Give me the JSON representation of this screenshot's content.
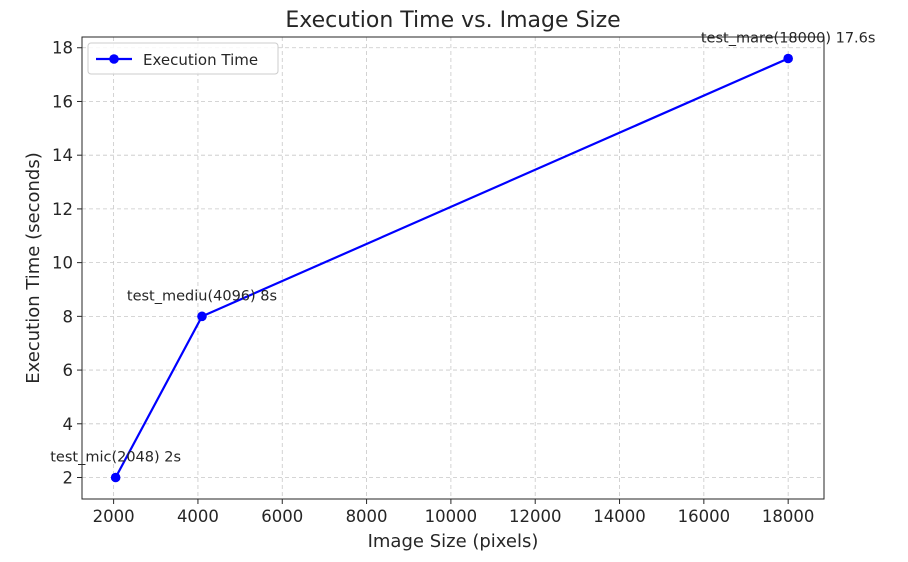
{
  "chart_data": {
    "type": "line",
    "title": "Execution Time vs. Image Size",
    "xlabel": "Image Size (pixels)",
    "ylabel": "Execution Time (seconds)",
    "xlim": [
      1250,
      18850
    ],
    "ylim": [
      1.2,
      18.4
    ],
    "x_ticks": [
      2000,
      4000,
      6000,
      8000,
      10000,
      12000,
      14000,
      16000,
      18000
    ],
    "y_ticks": [
      2,
      4,
      6,
      8,
      10,
      12,
      14,
      16,
      18
    ],
    "grid": true,
    "legend_position": "top-left",
    "series": [
      {
        "name": "Execution Time",
        "color": "#0000ff",
        "marker": "circle",
        "x": [
          2048,
          4096,
          18000
        ],
        "y": [
          2,
          8,
          17.6
        ]
      }
    ],
    "annotations": [
      {
        "text": "test_mic(2048) 2s",
        "x": 2048,
        "y": 2
      },
      {
        "text": "test_mediu(4096) 8s",
        "x": 4096,
        "y": 8
      },
      {
        "text": "test_mare(18000) 17.6s",
        "x": 18000,
        "y": 17.6
      }
    ]
  }
}
